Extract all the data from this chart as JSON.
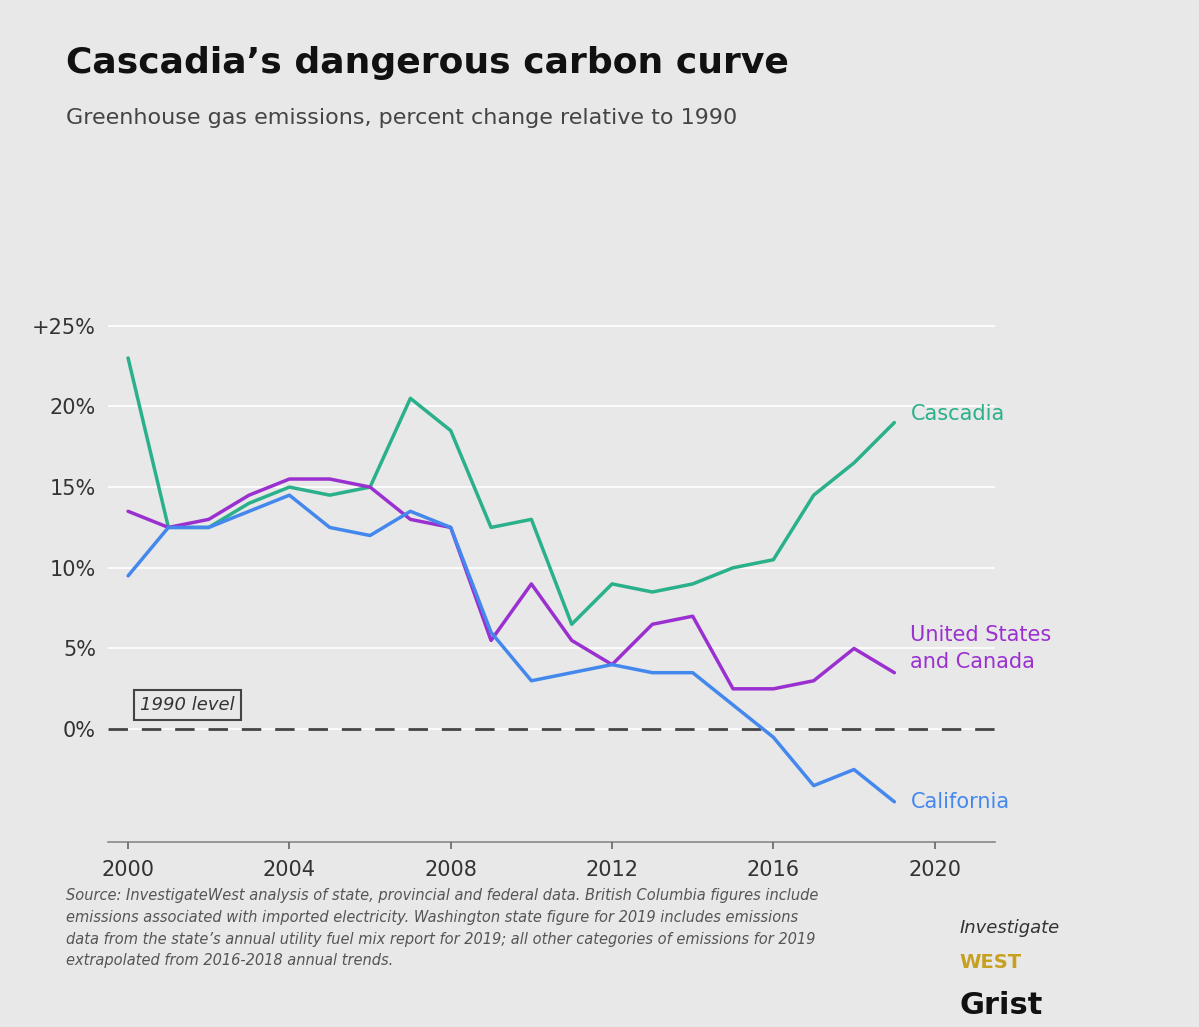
{
  "title": "Cascadia’s dangerous carbon curve",
  "subtitle": "Greenhouse gas emissions, percent change relative to 1990",
  "background_color": "#e8e8e8",
  "plot_bg_color": "#e8e8e8",
  "cascadia_color": "#2ab08a",
  "us_canada_color": "#9b30d0",
  "california_color": "#4488ee",
  "zero_line_color": "#444444",
  "grid_color": "#ffffff",
  "years_cascadia": [
    2000,
    2001,
    2002,
    2003,
    2004,
    2005,
    2006,
    2007,
    2008,
    2009,
    2010,
    2011,
    2012,
    2013,
    2014,
    2015,
    2016,
    2017,
    2018,
    2019
  ],
  "cascadia": [
    23.0,
    12.5,
    12.5,
    14.0,
    15.0,
    14.5,
    15.0,
    20.5,
    18.5,
    12.5,
    13.0,
    6.5,
    9.0,
    8.5,
    9.0,
    10.0,
    10.5,
    14.5,
    16.5,
    19.0
  ],
  "years_us_canada": [
    2000,
    2001,
    2002,
    2003,
    2004,
    2005,
    2006,
    2007,
    2008,
    2009,
    2010,
    2011,
    2012,
    2013,
    2014,
    2015,
    2016,
    2017,
    2018,
    2019
  ],
  "us_canada": [
    13.5,
    12.5,
    13.0,
    14.5,
    15.5,
    15.5,
    15.0,
    13.0,
    12.5,
    5.5,
    9.0,
    5.5,
    4.0,
    6.5,
    7.0,
    2.5,
    2.5,
    3.0,
    5.0,
    3.5
  ],
  "years_california": [
    2000,
    2001,
    2002,
    2003,
    2004,
    2005,
    2006,
    2007,
    2008,
    2009,
    2010,
    2011,
    2012,
    2013,
    2014,
    2015,
    2016,
    2017,
    2018,
    2019
  ],
  "california": [
    9.5,
    12.5,
    12.5,
    13.5,
    14.5,
    12.5,
    12.0,
    13.5,
    12.5,
    6.0,
    3.0,
    3.5,
    4.0,
    3.5,
    3.5,
    1.5,
    -0.5,
    -3.5,
    -2.5,
    -4.5
  ],
  "xlim": [
    1999.5,
    2021.5
  ],
  "ylim": [
    -7,
    28
  ],
  "xticks": [
    2000,
    2004,
    2008,
    2012,
    2016,
    2020
  ],
  "yticks": [
    0,
    5,
    10,
    15,
    20,
    25
  ],
  "ytick_labels": [
    "0%",
    "5%",
    "10%",
    "15%",
    "20%",
    "+25%"
  ],
  "source_text": "Source: InvestigateWest analysis of state, provincial and federal data. British Columbia figures include\nemissions associated with imported electricity. Washington state figure for 2019 includes emissions\ndata from the state’s annual utility fuel mix report for 2019; all other categories of emissions for 2019\nextrapolated from 2016-2018 annual trends.",
  "label_cascadia": "Cascadia",
  "label_us_canada": "United States\nand Canada",
  "label_california": "California",
  "label_1990": "1990 level",
  "line_width": 2.5
}
